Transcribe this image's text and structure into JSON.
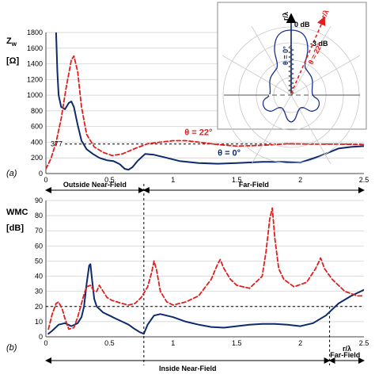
{
  "figure_labels": {
    "a": "(a)",
    "b": "(b)"
  },
  "colors": {
    "blue": "#0d2a6b",
    "red": "#e11d1d",
    "grid": "#cccccc"
  },
  "chart_data": [
    {
      "type": "line",
      "panel": "(a)",
      "ylabel": "Z_w",
      "ylabel_main": "Z",
      "ylabel_sub": "w",
      "yunit": "[Ω]",
      "xlim": [
        0,
        2.5
      ],
      "ylim": [
        0,
        1800
      ],
      "xticks": [
        0,
        0.5,
        1,
        1.5,
        2,
        2.5
      ],
      "xtick_labels": [
        "0",
        "0.5",
        "1",
        "1.5",
        "2",
        "2.5"
      ],
      "yticks": [
        0,
        200,
        400,
        600,
        800,
        1000,
        1200,
        1400,
        1600,
        1800
      ],
      "ytick_labels": [
        "0",
        "200",
        "400",
        "600",
        "800",
        "1000",
        "1200",
        "1400",
        "1600",
        "1800"
      ],
      "reference_line": {
        "y": 377,
        "label": "377"
      },
      "series": [
        {
          "name": "θ = 0°",
          "style": "solid",
          "color": "#0d2a6b",
          "x": [
            0.08,
            0.09,
            0.1,
            0.12,
            0.15,
            0.18,
            0.2,
            0.22,
            0.25,
            0.28,
            0.32,
            0.37,
            0.42,
            0.48,
            0.53,
            0.58,
            0.62,
            0.65,
            0.68,
            0.72,
            0.78,
            0.85,
            0.95,
            1.05,
            1.2,
            1.35,
            1.5,
            1.7,
            1.85,
            2.0,
            2.15,
            2.3,
            2.4,
            2.5
          ],
          "y": [
            1800,
            1300,
            1000,
            850,
            820,
            900,
            920,
            850,
            620,
            420,
            310,
            250,
            200,
            170,
            160,
            120,
            60,
            50,
            80,
            160,
            250,
            240,
            200,
            160,
            135,
            125,
            135,
            150,
            150,
            140,
            220,
            320,
            340,
            350
          ]
        },
        {
          "name": "θ = 22°",
          "style": "dashed",
          "color": "#e11d1d",
          "x": [
            0.0,
            0.04,
            0.08,
            0.12,
            0.16,
            0.2,
            0.22,
            0.25,
            0.28,
            0.32,
            0.38,
            0.45,
            0.52,
            0.6,
            0.7,
            0.8,
            0.9,
            1.0,
            1.1,
            1.2,
            1.35,
            1.5,
            1.7,
            1.9,
            2.1,
            2.3,
            2.5
          ],
          "y": [
            60,
            190,
            400,
            700,
            1100,
            1450,
            1500,
            1300,
            850,
            500,
            340,
            270,
            230,
            250,
            320,
            380,
            400,
            420,
            420,
            400,
            370,
            350,
            360,
            380,
            375,
            375,
            370
          ]
        }
      ],
      "annotations": [
        {
          "text": "θ = 22°",
          "x": 1.09,
          "y": 490,
          "color": "#e11d1d"
        },
        {
          "text": "θ = 0°",
          "x": 1.35,
          "y": 230,
          "color": "#0d2a6b"
        }
      ],
      "inset": {
        "labels": [
          "r/λ",
          "0 dB",
          "-3 dB",
          "θ = 0°",
          "θ = 22°",
          "r/λ"
        ]
      }
    },
    {
      "type": "line",
      "panel": "(b)",
      "ylabel": "WMC",
      "yunit": "[dB]",
      "xlabel": "r/λ",
      "xlim": [
        0,
        2.5
      ],
      "ylim": [
        0,
        90
      ],
      "xticks": [
        0,
        0.5,
        1,
        1.5,
        2,
        2.5
      ],
      "xtick_labels": [
        "0",
        "0.5",
        "1",
        "1.5",
        "2",
        "2.5"
      ],
      "yticks": [
        0,
        10,
        20,
        30,
        40,
        50,
        60,
        70,
        80,
        90
      ],
      "ytick_labels": [
        "0",
        "10",
        "20",
        "30",
        "40",
        "50",
        "60",
        "70",
        "80",
        "90"
      ],
      "reference_line": {
        "y": 20
      },
      "region_boundaries": [
        0.77,
        2.23
      ],
      "region_labels": {
        "top_left": "Outside Near-Field",
        "top_right": "Far-Field",
        "bottom_left": "Inside Near-Field",
        "bottom_right": "Far-Field"
      },
      "series": [
        {
          "name": "θ = 0°",
          "style": "solid",
          "color": "#0d2a6b",
          "x": [
            0.02,
            0.05,
            0.1,
            0.15,
            0.2,
            0.25,
            0.28,
            0.3,
            0.32,
            0.34,
            0.35,
            0.36,
            0.38,
            0.4,
            0.45,
            0.5,
            0.55,
            0.6,
            0.65,
            0.7,
            0.74,
            0.77,
            0.8,
            0.85,
            0.9,
            1.0,
            1.1,
            1.2,
            1.3,
            1.4,
            1.5,
            1.6,
            1.7,
            1.8,
            1.9,
            2.0,
            2.1,
            2.2,
            2.3,
            2.4,
            2.5
          ],
          "y": [
            2,
            4,
            8,
            9,
            7,
            9,
            13,
            20,
            35,
            47,
            48,
            40,
            25,
            20,
            16,
            14,
            12,
            10,
            8,
            5,
            3,
            2,
            8,
            14,
            15,
            13,
            10,
            8,
            6.5,
            6,
            7,
            8,
            8.5,
            8.5,
            8,
            7,
            9,
            14,
            22,
            27,
            31
          ]
        },
        {
          "name": "θ = 22°",
          "style": "dashed",
          "color": "#e11d1d",
          "x": [
            0.02,
            0.05,
            0.08,
            0.1,
            0.13,
            0.15,
            0.18,
            0.22,
            0.25,
            0.28,
            0.3,
            0.32,
            0.35,
            0.38,
            0.4,
            0.42,
            0.45,
            0.48,
            0.52,
            0.56,
            0.6,
            0.65,
            0.7,
            0.75,
            0.8,
            0.83,
            0.85,
            0.87,
            0.9,
            0.95,
            1.0,
            1.1,
            1.2,
            1.3,
            1.35,
            1.37,
            1.4,
            1.45,
            1.5,
            1.6,
            1.7,
            1.73,
            1.76,
            1.78,
            1.8,
            1.83,
            1.87,
            1.95,
            2.05,
            2.12,
            2.16,
            2.19,
            2.25,
            2.35,
            2.45,
            2.5
          ],
          "y": [
            5,
            15,
            22,
            23,
            18,
            12,
            5,
            6,
            13,
            22,
            28,
            33,
            34,
            30,
            30,
            34,
            30,
            26,
            24,
            23,
            22,
            21,
            22,
            26,
            33,
            42,
            50,
            44,
            30,
            23,
            21,
            23,
            27,
            38,
            48,
            51,
            45,
            38,
            34,
            32,
            40,
            56,
            78,
            85,
            65,
            45,
            38,
            33,
            36,
            45,
            52,
            45,
            38,
            30,
            27,
            27
          ]
        }
      ]
    }
  ]
}
